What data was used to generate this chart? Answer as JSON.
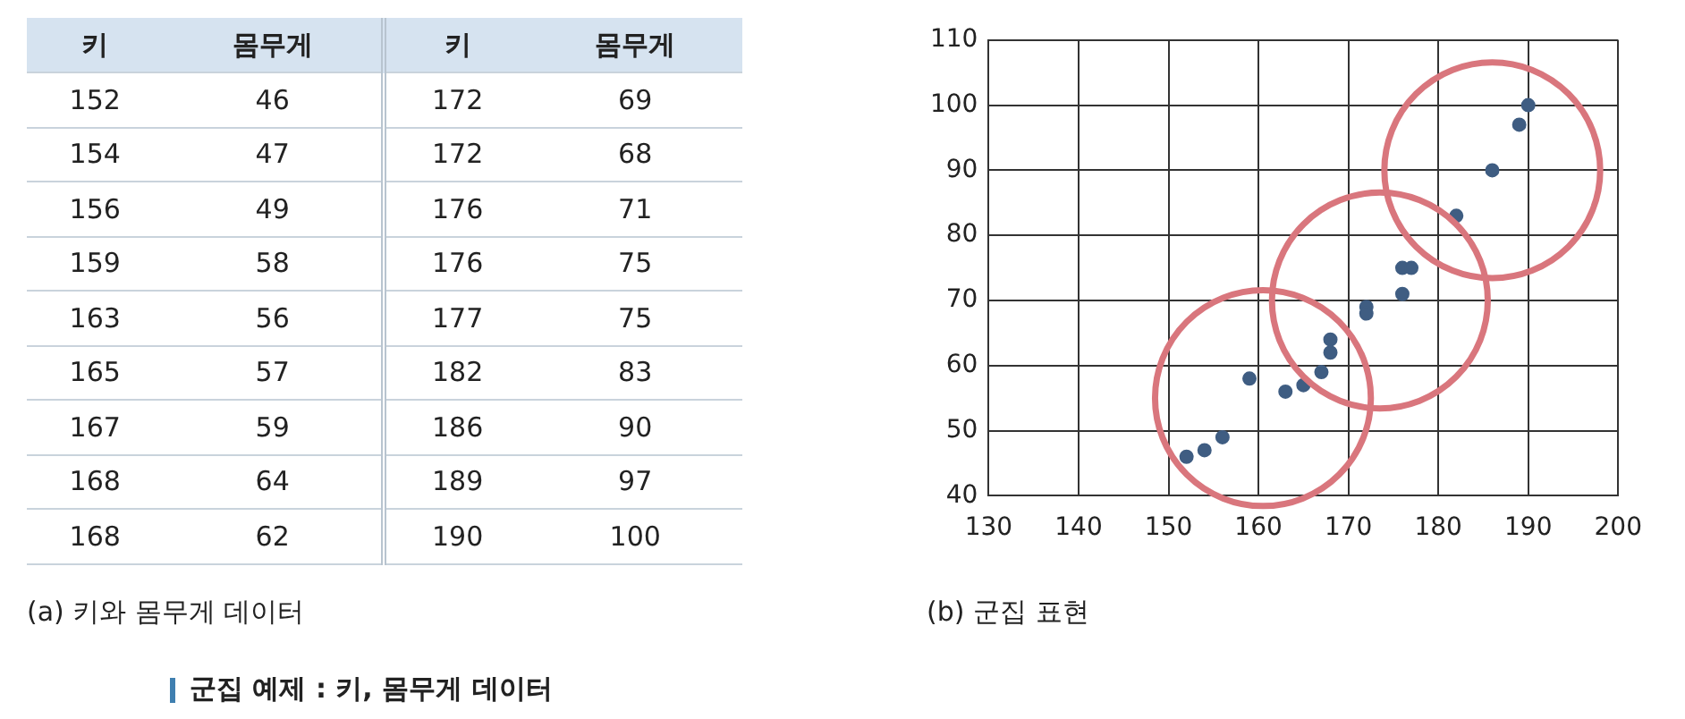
{
  "chart_data": [
    {
      "type": "other",
      "title": "군집 예제 : 키, 몸무게 데이터",
      "subtitle": "(a) 키와 몸무게 데이터",
      "categories": [
        "키",
        "몸무게",
        "키",
        "몸무게"
      ],
      "annotations": [
        "152",
        "46",
        "172",
        "69",
        "154",
        "47",
        "172",
        "68",
        "156",
        "49",
        "176",
        "71",
        "159",
        "58",
        "176",
        "75",
        "163",
        "56",
        "177",
        "75",
        "165",
        "57",
        "182",
        "83",
        "167",
        "59",
        "186",
        "90",
        "168",
        "64",
        "189",
        "97",
        "168",
        "62",
        "190",
        "100"
      ]
    },
    {
      "type": "scatter",
      "x": [
        152,
        154,
        156,
        159,
        163,
        165,
        167,
        168,
        168,
        172,
        172,
        176,
        176,
        177,
        182,
        186,
        189,
        190
      ],
      "values": [
        46,
        47,
        49,
        58,
        56,
        57,
        59,
        64,
        62,
        69,
        68,
        71,
        75,
        75,
        83,
        90,
        97,
        100
      ],
      "color": "#3f5d82",
      "marker": "circle",
      "xlim": [
        130,
        200
      ],
      "xticks": [
        130,
        140,
        150,
        160,
        170,
        180,
        190,
        200
      ],
      "ylim": [
        40,
        110
      ],
      "yticks": [
        40,
        50,
        60,
        70,
        80,
        90,
        100,
        110
      ],
      "grid": true,
      "annotations": [
        "(b) 군집 표현"
      ]
    }
  ]
}
